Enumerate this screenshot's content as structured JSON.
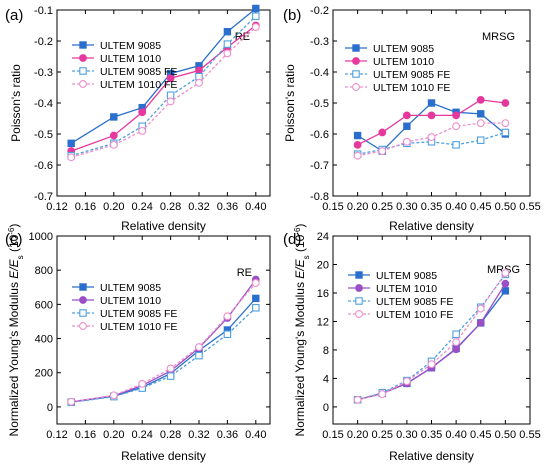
{
  "colors": {
    "ultem9085": "#2a6fcd",
    "ultem1010_top": "#e6389d",
    "ultem1010_bottom": "#9b4fc7",
    "fe9085": "#4f9fe0",
    "fe1010": "#ee8fcb"
  },
  "chart_data": [
    {
      "id": "a",
      "panel_label": "(a)",
      "type": "line",
      "annotation": "RE",
      "xlabel": "Relative density",
      "ylabel": "Poisson's ratio",
      "ylabel_parts": {
        "main": "Poisson's ratio",
        "italic": "",
        "sub": "",
        "tail": ""
      },
      "xlim": [
        0.12,
        0.42
      ],
      "ylim": [
        -0.7,
        -0.1
      ],
      "xticks": [
        0.12,
        0.16,
        0.2,
        0.24,
        0.28,
        0.32,
        0.36,
        0.4
      ],
      "xtick_labels": [
        "0.12",
        "0.16",
        "0.20",
        "0.24",
        "0.28",
        "0.32",
        "0.36",
        "0.40"
      ],
      "yticks": [
        -0.7,
        -0.6,
        -0.5,
        -0.4,
        -0.3,
        -0.2,
        -0.1
      ],
      "ytick_labels": [
        "-0.7",
        "-0.6",
        "-0.5",
        "-0.4",
        "-0.3",
        "-0.2",
        "-0.1"
      ],
      "legend_position": "top-left",
      "series": [
        {
          "name": "ULTEM 9085",
          "color_key": "ultem9085",
          "marker": "square",
          "dashed": false,
          "x": [
            0.14,
            0.2,
            0.24,
            0.28,
            0.32,
            0.36,
            0.4
          ],
          "y": [
            -0.53,
            -0.445,
            -0.415,
            -0.305,
            -0.28,
            -0.17,
            -0.095
          ]
        },
        {
          "name": "ULTEM 1010",
          "color_key": "ultem1010_top",
          "marker": "circle",
          "dashed": false,
          "x": [
            0.14,
            0.2,
            0.24,
            0.28,
            0.32,
            0.36,
            0.4
          ],
          "y": [
            -0.555,
            -0.505,
            -0.43,
            -0.32,
            -0.295,
            -0.22,
            -0.15
          ]
        },
        {
          "name": "ULTEM 9085 FE",
          "color_key": "fe9085",
          "marker": "square-open",
          "dashed": true,
          "x": [
            0.14,
            0.2,
            0.24,
            0.28,
            0.32,
            0.36,
            0.4
          ],
          "y": [
            -0.57,
            -0.53,
            -0.475,
            -0.375,
            -0.315,
            -0.21,
            -0.12
          ]
        },
        {
          "name": "ULTEM 1010 FE",
          "color_key": "fe1010",
          "marker": "circle-open",
          "dashed": true,
          "x": [
            0.14,
            0.2,
            0.24,
            0.28,
            0.32,
            0.36,
            0.4
          ],
          "y": [
            -0.575,
            -0.535,
            -0.49,
            -0.395,
            -0.335,
            -0.24,
            -0.155
          ]
        }
      ]
    },
    {
      "id": "b",
      "panel_label": "(b)",
      "type": "line",
      "annotation": "MRSG",
      "xlabel": "Relative density",
      "ylabel": "Poisson's ratio",
      "ylabel_parts": {
        "main": "Poisson's ratio",
        "italic": "",
        "sub": "",
        "tail": ""
      },
      "xlim": [
        0.15,
        0.55
      ],
      "ylim": [
        -0.8,
        -0.2
      ],
      "xticks": [
        0.15,
        0.2,
        0.25,
        0.3,
        0.35,
        0.4,
        0.45,
        0.5,
        0.55
      ],
      "xtick_labels": [
        "0.15",
        "0.20",
        "0.25",
        "0.30",
        "0.35",
        "0.40",
        "0.45",
        "0.50",
        "0.55"
      ],
      "yticks": [
        -0.8,
        -0.7,
        -0.6,
        -0.5,
        -0.4,
        -0.3,
        -0.2
      ],
      "ytick_labels": [
        "-0.8",
        "-0.7",
        "-0.6",
        "-0.5",
        "-0.4",
        "-0.3",
        "-0.2"
      ],
      "legend_position": "top-left",
      "series": [
        {
          "name": "ULTEM 9085",
          "color_key": "ultem9085",
          "marker": "square",
          "dashed": false,
          "x": [
            0.2,
            0.25,
            0.3,
            0.35,
            0.4,
            0.45,
            0.5
          ],
          "y": [
            -0.605,
            -0.655,
            -0.575,
            -0.5,
            -0.53,
            -0.535,
            -0.6
          ]
        },
        {
          "name": "ULTEM 1010",
          "color_key": "ultem1010_top",
          "marker": "circle",
          "dashed": false,
          "x": [
            0.2,
            0.25,
            0.3,
            0.35,
            0.4,
            0.45,
            0.5
          ],
          "y": [
            -0.635,
            -0.595,
            -0.54,
            -0.54,
            -0.54,
            -0.49,
            -0.5
          ]
        },
        {
          "name": "ULTEM 9085 FE",
          "color_key": "fe9085",
          "marker": "square-open",
          "dashed": true,
          "x": [
            0.2,
            0.25,
            0.3,
            0.35,
            0.4,
            0.45,
            0.5
          ],
          "y": [
            -0.665,
            -0.65,
            -0.63,
            -0.625,
            -0.635,
            -0.62,
            -0.595
          ]
        },
        {
          "name": "ULTEM 1010 FE",
          "color_key": "fe1010",
          "marker": "circle-open",
          "dashed": true,
          "x": [
            0.2,
            0.25,
            0.3,
            0.35,
            0.4,
            0.45,
            0.5
          ],
          "y": [
            -0.67,
            -0.655,
            -0.625,
            -0.61,
            -0.575,
            -0.565,
            -0.565
          ]
        }
      ]
    },
    {
      "id": "c",
      "panel_label": "(c)",
      "type": "line",
      "annotation": "RE",
      "xlabel": "Relative density",
      "ylabel": "Normalized Young's Modulus E/Es (10-6)",
      "ylabel_parts": {
        "main": "Normalized Young's Modulus ",
        "italic": "E/E",
        "sub": "s",
        "tail": " (10",
        "sup": "-6",
        "end": ")"
      },
      "xlim": [
        0.12,
        0.42
      ],
      "ylim": [
        -100,
        1000
      ],
      "xticks": [
        0.12,
        0.16,
        0.2,
        0.24,
        0.28,
        0.32,
        0.36,
        0.4
      ],
      "xtick_labels": [
        "0.12",
        "0.16",
        "0.20",
        "0.24",
        "0.28",
        "0.32",
        "0.36",
        "0.40"
      ],
      "yticks": [
        0,
        200,
        400,
        600,
        800,
        1000
      ],
      "ytick_labels": [
        "0",
        "200",
        "400",
        "600",
        "800",
        "1000"
      ],
      "legend_position": "top-left",
      "series": [
        {
          "name": "ULTEM 9085",
          "color_key": "ultem9085",
          "marker": "square",
          "dashed": false,
          "x": [
            0.14,
            0.2,
            0.24,
            0.28,
            0.32,
            0.36,
            0.4
          ],
          "y": [
            28,
            62,
            115,
            195,
            330,
            450,
            635
          ]
        },
        {
          "name": "ULTEM 1010",
          "color_key": "ultem1010_bottom",
          "marker": "circle",
          "dashed": false,
          "x": [
            0.14,
            0.2,
            0.24,
            0.28,
            0.32,
            0.36,
            0.4
          ],
          "y": [
            30,
            65,
            125,
            210,
            345,
            520,
            745
          ]
        },
        {
          "name": "ULTEM 9085 FE",
          "color_key": "fe9085",
          "marker": "square-open",
          "dashed": true,
          "x": [
            0.14,
            0.2,
            0.24,
            0.28,
            0.32,
            0.36,
            0.4
          ],
          "y": [
            27,
            60,
            110,
            180,
            300,
            425,
            580
          ]
        },
        {
          "name": "ULTEM 1010 FE",
          "color_key": "fe1010",
          "marker": "circle-open",
          "dashed": true,
          "x": [
            0.14,
            0.2,
            0.24,
            0.28,
            0.32,
            0.36,
            0.4
          ],
          "y": [
            30,
            68,
            135,
            225,
            350,
            530,
            725
          ]
        }
      ]
    },
    {
      "id": "d",
      "panel_label": "(d)",
      "type": "line",
      "annotation": "MRSG",
      "xlabel": "Relative density",
      "ylabel": "Normalized Young's Modulus E/Es (10-6)",
      "ylabel_parts": {
        "main": "Normalized Young's Modulus ",
        "italic": "E/E",
        "sub": "s",
        "tail": " (10",
        "sup": "-6",
        "end": ")"
      },
      "xlim": [
        0.15,
        0.55
      ],
      "ylim": [
        -2.4,
        24
      ],
      "xticks": [
        0.15,
        0.2,
        0.25,
        0.3,
        0.35,
        0.4,
        0.45,
        0.5,
        0.55
      ],
      "xtick_labels": [
        "0.15",
        "0.20",
        "0.25",
        "0.30",
        "0.35",
        "0.40",
        "0.45",
        "0.50",
        "0.55"
      ],
      "yticks": [
        0,
        4,
        8,
        12,
        16,
        20,
        24
      ],
      "ytick_labels": [
        "0",
        "4",
        "8",
        "12",
        "16",
        "20",
        "24"
      ],
      "legend_position": "top-left",
      "series": [
        {
          "name": "ULTEM 9085",
          "color_key": "ultem9085",
          "marker": "square",
          "dashed": false,
          "x": [
            0.2,
            0.25,
            0.3,
            0.35,
            0.4,
            0.45,
            0.5
          ],
          "y": [
            1.0,
            1.9,
            3.3,
            5.5,
            8.2,
            11.8,
            16.3
          ]
        },
        {
          "name": "ULTEM 1010",
          "color_key": "ultem1010_bottom",
          "marker": "circle",
          "dashed": false,
          "x": [
            0.2,
            0.25,
            0.3,
            0.35,
            0.4,
            0.45,
            0.5
          ],
          "y": [
            1.0,
            1.9,
            3.3,
            5.5,
            8.1,
            11.8,
            17.3
          ]
        },
        {
          "name": "ULTEM 9085 FE",
          "color_key": "fe9085",
          "marker": "square-open",
          "dashed": true,
          "x": [
            0.2,
            0.25,
            0.3,
            0.35,
            0.4,
            0.45,
            0.5
          ],
          "y": [
            1.0,
            2.0,
            3.7,
            6.4,
            10.2,
            14.0,
            18.6
          ]
        },
        {
          "name": "ULTEM 1010 FE",
          "color_key": "fe1010",
          "marker": "circle-open",
          "dashed": true,
          "x": [
            0.2,
            0.25,
            0.3,
            0.35,
            0.4,
            0.45,
            0.5
          ],
          "y": [
            1.0,
            1.8,
            3.6,
            6.0,
            9.1,
            13.8,
            18.8
          ]
        }
      ]
    }
  ]
}
